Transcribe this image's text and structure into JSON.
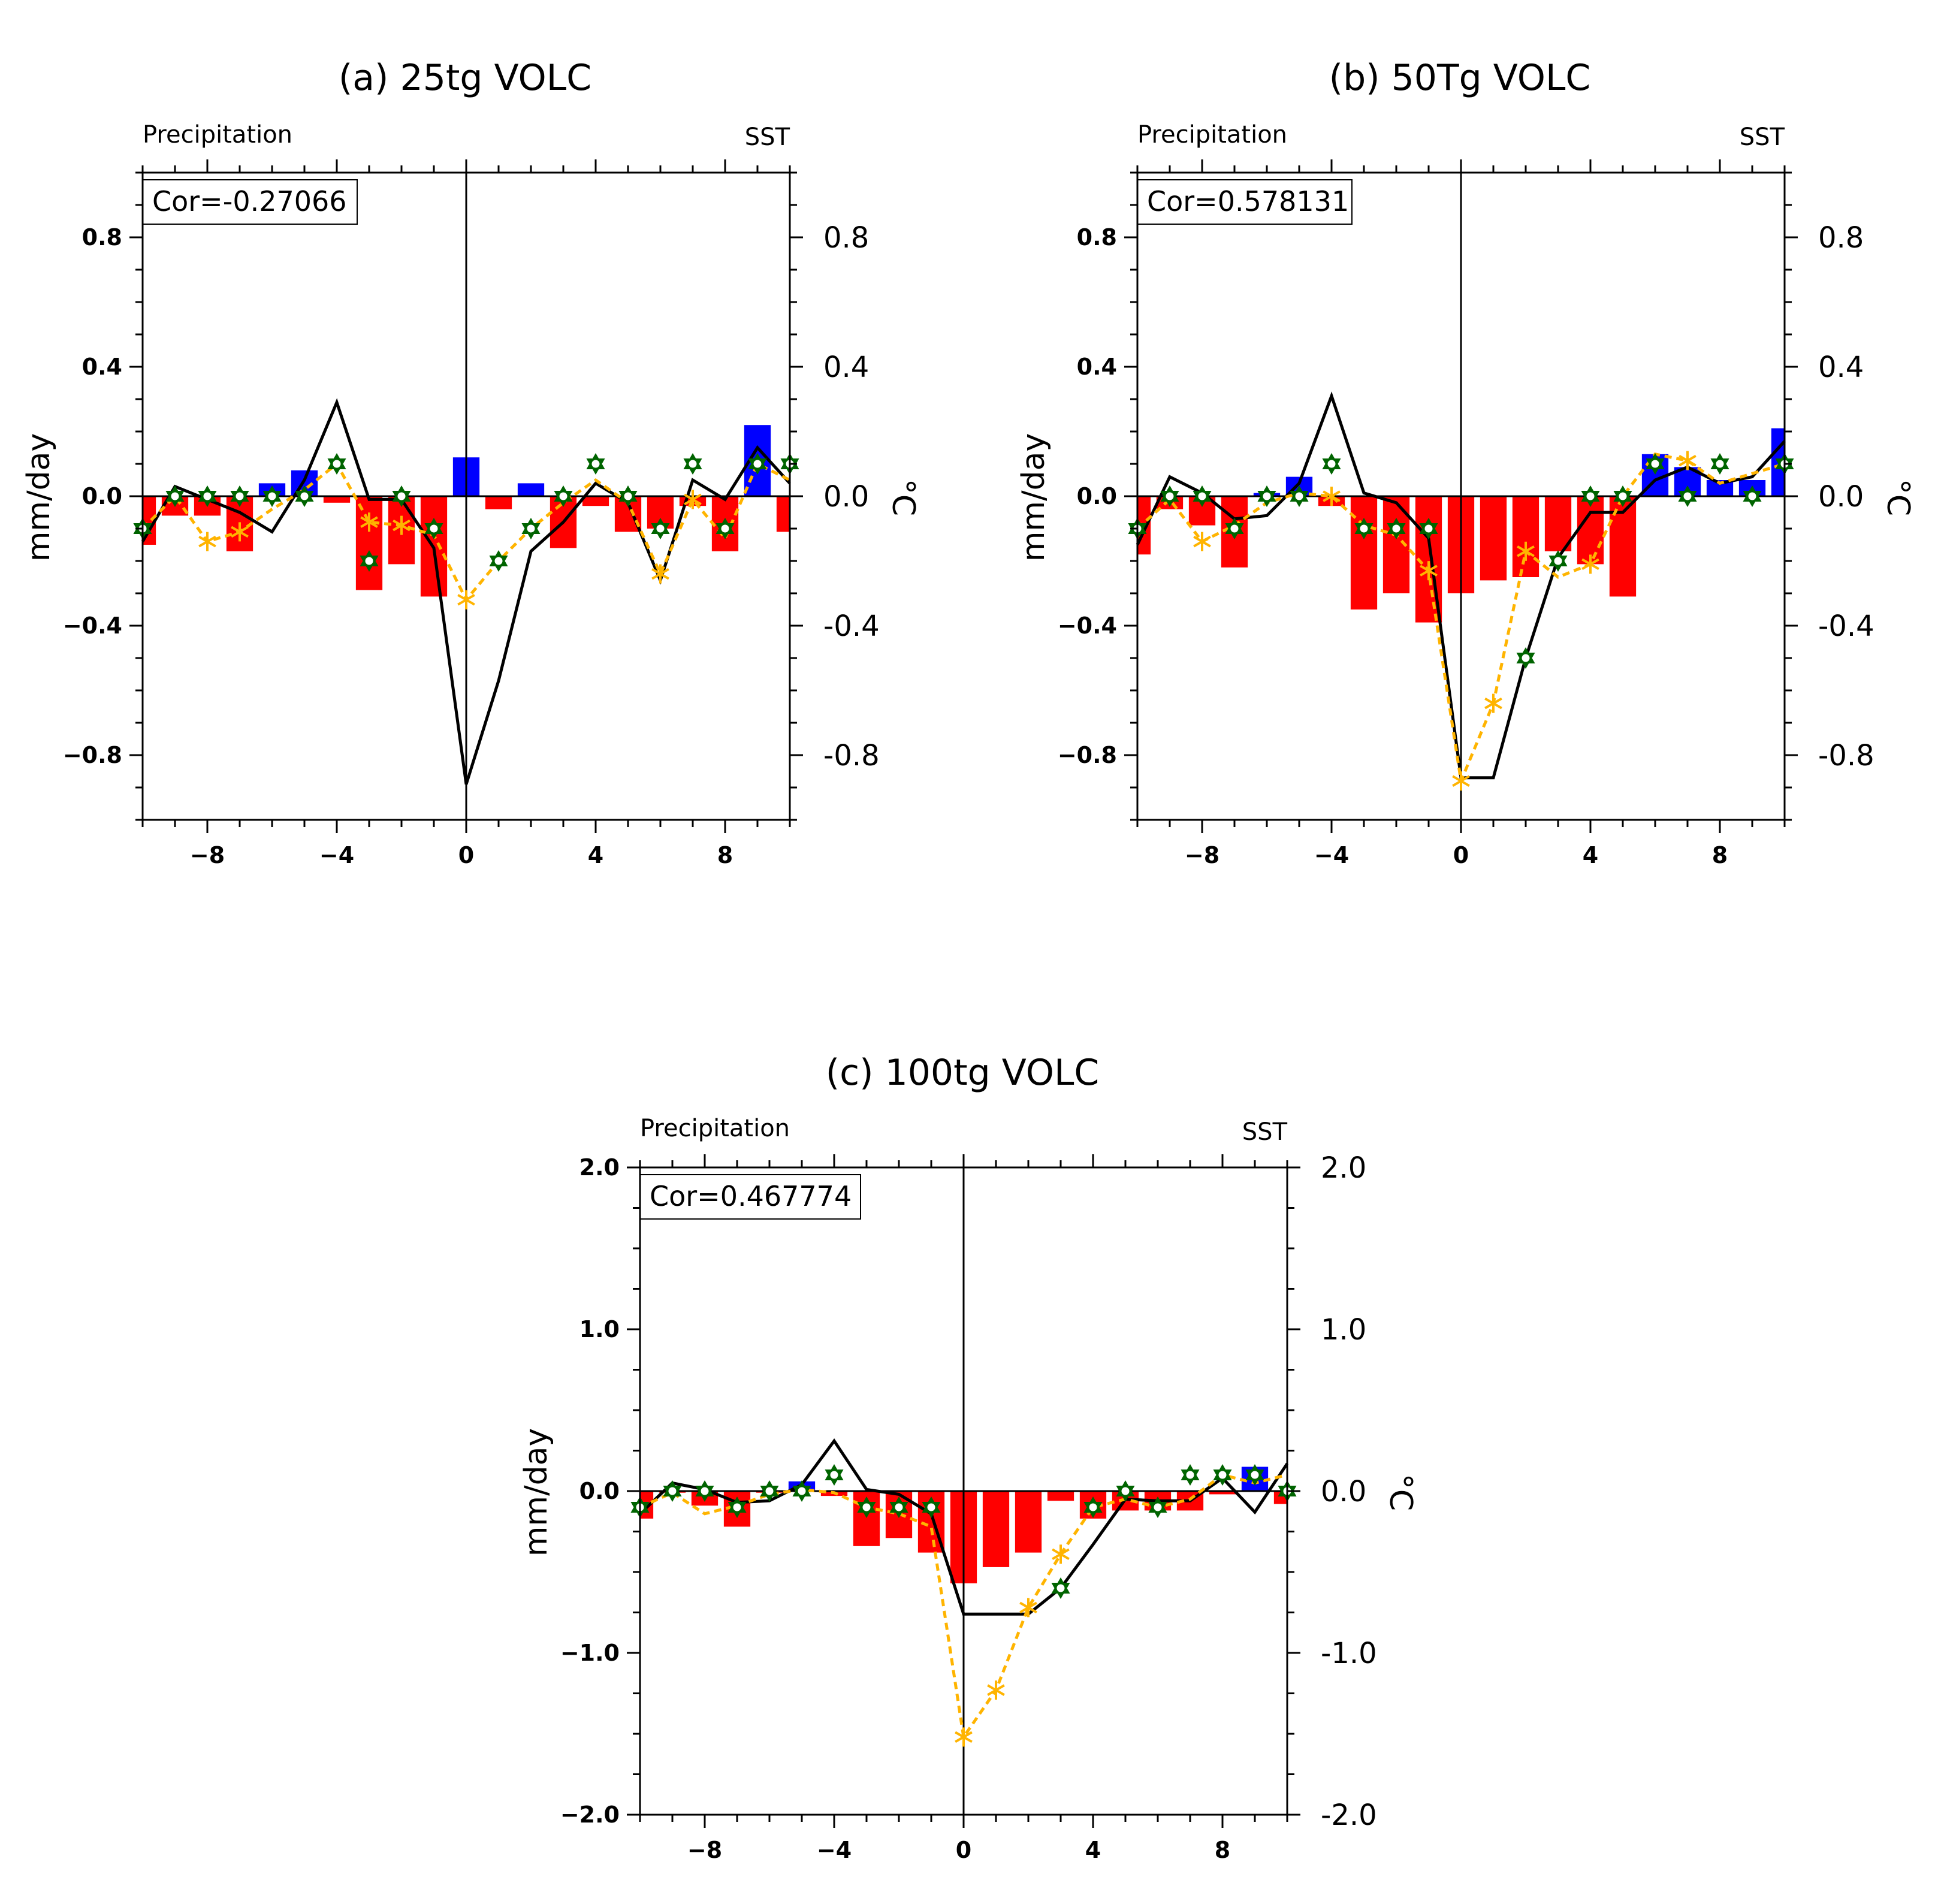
{
  "colors": {
    "negative_bar": "#ff0000",
    "positive_bar": "#0000ff",
    "sst_line": "#000000",
    "dashed_line": "#ffb400",
    "star_marker": "#006400"
  },
  "chart_data": [
    {
      "type": "bar",
      "title": "(a) 25tg VOLC",
      "left_label": "Precipitation",
      "right_label": "SST",
      "ylabel": "mm/day",
      "y2label": "°C",
      "cor_label": "Cor=-0.27066",
      "x": [
        -10,
        -9,
        -8,
        -7,
        -6,
        -5,
        -4,
        -3,
        -2,
        -1,
        0,
        1,
        2,
        3,
        4,
        5,
        6,
        7,
        8,
        9,
        10
      ],
      "xlim": [
        -10,
        10
      ],
      "ylim": [
        -1.0,
        1.0
      ],
      "yticks": [
        -0.8,
        -0.4,
        0.0,
        0.4,
        0.8
      ],
      "ytick_labels_left": [
        "−0.8",
        "−0.4",
        "0.0",
        "0.4",
        "0.8"
      ],
      "ytick_labels_right": [
        "-0.8",
        "-0.4",
        "0.0",
        "0.4",
        "0.8"
      ],
      "xticks": [
        -8,
        -4,
        0,
        4,
        8
      ],
      "xtick_labels": [
        "−8",
        "−4",
        "0",
        "4",
        "8"
      ],
      "series": [
        {
          "name": "Precipitation",
          "kind": "bar",
          "values": [
            -0.15,
            -0.06,
            -0.06,
            -0.17,
            0.04,
            0.08,
            -0.02,
            -0.29,
            -0.21,
            -0.31,
            0.12,
            -0.04,
            0.04,
            -0.16,
            -0.03,
            -0.11,
            -0.1,
            -0.03,
            -0.17,
            0.22,
            -0.11
          ]
        },
        {
          "name": "SST",
          "kind": "line",
          "values": [
            -0.14,
            0.03,
            -0.01,
            -0.05,
            -0.11,
            0.05,
            0.29,
            -0.01,
            -0.01,
            -0.16,
            -0.89,
            -0.57,
            -0.17,
            -0.08,
            0.04,
            -0.02,
            -0.26,
            0.05,
            -0.01,
            0.15,
            0.04
          ]
        },
        {
          "name": "Precipitation (smoothed)",
          "kind": "dashed",
          "values": [
            -0.1,
            0.0,
            -0.14,
            -0.11,
            -0.04,
            0.02,
            0.1,
            -0.08,
            -0.09,
            -0.12,
            -0.32,
            -0.2,
            -0.1,
            -0.02,
            0.05,
            -0.02,
            -0.24,
            -0.01,
            -0.13,
            0.1,
            0.05
          ]
        },
        {
          "name": "Stars",
          "kind": "marker",
          "values": [
            -0.1,
            0.0,
            0.0,
            0.0,
            0.0,
            0.0,
            0.1,
            -0.2,
            0.0,
            -0.1,
            null,
            -0.2,
            -0.1,
            0.0,
            0.1,
            0.0,
            -0.1,
            0.1,
            -0.1,
            0.1,
            0.1
          ]
        }
      ]
    },
    {
      "type": "bar",
      "title": "(b) 50Tg VOLC",
      "left_label": "Precipitation",
      "right_label": "SST",
      "ylabel": "mm/day",
      "y2label": "°C",
      "cor_label": "Cor=0.578131",
      "x": [
        -10,
        -9,
        -8,
        -7,
        -6,
        -5,
        -4,
        -3,
        -2,
        -1,
        0,
        1,
        2,
        3,
        4,
        5,
        6,
        7,
        8,
        9,
        10
      ],
      "xlim": [
        -10,
        10
      ],
      "ylim": [
        -1.0,
        1.0
      ],
      "yticks": [
        -0.8,
        -0.4,
        0.0,
        0.4,
        0.8
      ],
      "ytick_labels_left": [
        "−0.8",
        "−0.4",
        "0.0",
        "0.4",
        "0.8"
      ],
      "ytick_labels_right": [
        "-0.8",
        "-0.4",
        "0.0",
        "0.4",
        "0.8"
      ],
      "xticks": [
        -8,
        -4,
        0,
        4,
        8
      ],
      "xtick_labels": [
        "−8",
        "−4",
        "0",
        "4",
        "8"
      ],
      "series": [
        {
          "name": "Precipitation",
          "kind": "bar",
          "values": [
            -0.18,
            -0.04,
            -0.09,
            -0.22,
            0.01,
            0.06,
            -0.03,
            -0.35,
            -0.3,
            -0.39,
            -0.3,
            -0.26,
            -0.25,
            -0.17,
            -0.21,
            -0.31,
            0.13,
            0.09,
            0.05,
            0.05,
            0.21
          ]
        },
        {
          "name": "SST",
          "kind": "line",
          "values": [
            -0.15,
            0.06,
            0.01,
            -0.07,
            -0.06,
            0.04,
            0.31,
            0.01,
            -0.02,
            -0.13,
            -0.87,
            -0.87,
            -0.5,
            -0.19,
            -0.05,
            -0.05,
            0.05,
            0.09,
            0.04,
            0.06,
            0.17
          ]
        },
        {
          "name": "Precipitation (smoothed)",
          "kind": "dashed",
          "values": [
            -0.1,
            -0.01,
            -0.14,
            -0.09,
            -0.02,
            0.01,
            0.0,
            -0.09,
            -0.12,
            -0.23,
            -0.88,
            -0.64,
            -0.17,
            -0.25,
            -0.21,
            0.0,
            0.13,
            0.11,
            0.04,
            0.07,
            0.1
          ]
        },
        {
          "name": "Stars",
          "kind": "marker",
          "values": [
            -0.1,
            0.0,
            0.0,
            -0.1,
            0.0,
            0.0,
            0.1,
            -0.1,
            -0.1,
            -0.1,
            null,
            null,
            -0.5,
            -0.2,
            0.0,
            0.0,
            0.1,
            0.0,
            0.1,
            0.0,
            0.1
          ]
        }
      ]
    },
    {
      "type": "bar",
      "title": "(c) 100tg VOLC",
      "left_label": "Precipitation",
      "right_label": "SST",
      "ylabel": "mm/day",
      "y2label": "°C",
      "cor_label": "Cor=0.467774",
      "x": [
        -10,
        -9,
        -8,
        -7,
        -6,
        -5,
        -4,
        -3,
        -2,
        -1,
        0,
        1,
        2,
        3,
        4,
        5,
        6,
        7,
        8,
        9,
        10
      ],
      "xlim": [
        -10,
        10
      ],
      "ylim": [
        -2.0,
        2.0
      ],
      "yticks": [
        -2.0,
        -1.0,
        0.0,
        1.0,
        2.0
      ],
      "ytick_labels_left": [
        "−2.0",
        "−1.0",
        "0.0",
        "1.0",
        "2.0"
      ],
      "ytick_labels_right": [
        "-2.0",
        "-1.0",
        "0.0",
        "1.0",
        "2.0"
      ],
      "xticks": [
        -8,
        -4,
        0,
        4,
        8
      ],
      "xtick_labels": [
        "−8",
        "−4",
        "0",
        "4",
        "8"
      ],
      "series": [
        {
          "name": "Precipitation",
          "kind": "bar",
          "values": [
            -0.17,
            -0.01,
            -0.09,
            -0.22,
            -0.01,
            0.06,
            -0.03,
            -0.34,
            -0.29,
            -0.38,
            -0.57,
            -0.47,
            -0.38,
            -0.06,
            -0.17,
            -0.12,
            -0.12,
            -0.12,
            -0.02,
            0.15,
            -0.08
          ]
        },
        {
          "name": "SST",
          "kind": "line",
          "values": [
            -0.14,
            0.05,
            0.01,
            -0.07,
            -0.06,
            0.04,
            0.31,
            0.01,
            -0.02,
            -0.14,
            -0.76,
            -0.76,
            -0.76,
            -0.6,
            -0.33,
            -0.05,
            -0.06,
            -0.06,
            0.08,
            -0.13,
            0.17
          ]
        },
        {
          "name": "Precipitation (smoothed)",
          "kind": "dashed",
          "values": [
            -0.1,
            -0.01,
            -0.14,
            -0.09,
            -0.02,
            0.01,
            -0.01,
            -0.1,
            -0.14,
            -0.22,
            -1.52,
            -1.23,
            -0.72,
            -0.39,
            -0.1,
            -0.05,
            -0.1,
            -0.05,
            0.1,
            0.05,
            0.1
          ]
        },
        {
          "name": "Stars",
          "kind": "marker",
          "values": [
            -0.1,
            0.0,
            0.0,
            -0.1,
            0.0,
            0.0,
            0.1,
            -0.1,
            -0.1,
            -0.1,
            null,
            null,
            null,
            -0.6,
            -0.1,
            0.0,
            -0.1,
            0.1,
            0.1,
            0.1,
            0.0
          ]
        }
      ]
    }
  ]
}
